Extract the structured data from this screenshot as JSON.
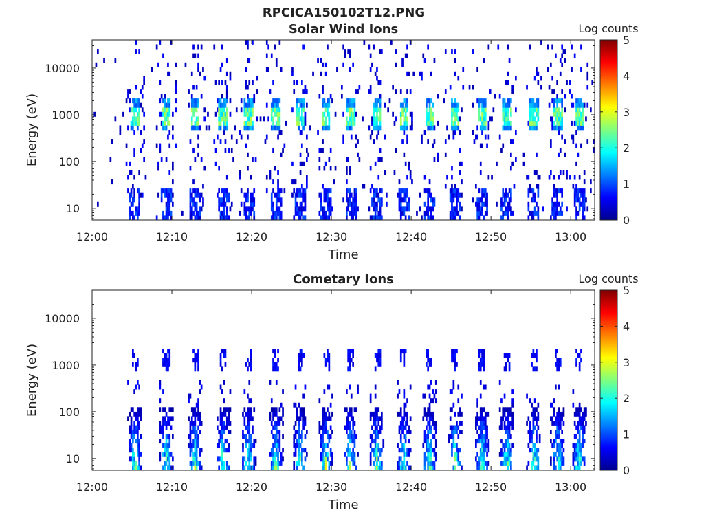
{
  "figure_title": "RPCICA150102T12.PNG",
  "chart_data": [
    {
      "type": "heatmap",
      "title": "Solar Wind Ions",
      "xlabel": "Time",
      "ylabel": "Energy (eV)",
      "x_start": "12:00",
      "xlim_minutes": [
        0,
        63
      ],
      "xticks": [
        "12:00",
        "12:10",
        "12:20",
        "12:30",
        "12:40",
        "12:50",
        "13:00"
      ],
      "yscale": "log",
      "ylim": [
        5.6,
        40000
      ],
      "yticks": [
        10,
        100,
        1000,
        10000
      ],
      "yticklabels": [
        "10",
        "100",
        "1000",
        "10000"
      ],
      "colorbar": {
        "label": "Log counts",
        "min": 0,
        "max": 5,
        "ticks": [
          "0",
          "1",
          "2",
          "3",
          "4",
          "5"
        ],
        "colormap": "jet"
      },
      "sweep_times_min": [
        5.3,
        9.2,
        12.8,
        16.3,
        19.5,
        22.9,
        26.0,
        29.2,
        32.3,
        35.6,
        39.0,
        42.2,
        45.4,
        48.8,
        51.9,
        55.3,
        58.3,
        61.0
      ],
      "peak_energy_eV": [
        800,
        1000,
        2000
      ],
      "peak_log_counts": 2.8,
      "low_energy_band_eV": [
        6,
        28
      ],
      "low_energy_log_counts": 0.6
    },
    {
      "type": "heatmap",
      "title": "Cometary Ions",
      "xlabel": "Time",
      "ylabel": "Energy (eV)",
      "x_start": "12:00",
      "xlim_minutes": [
        0,
        63
      ],
      "xticks": [
        "12:00",
        "12:10",
        "12:20",
        "12:30",
        "12:40",
        "12:50",
        "13:00"
      ],
      "yscale": "log",
      "ylim": [
        5.6,
        40000
      ],
      "yticks": [
        10,
        100,
        1000,
        10000
      ],
      "yticklabels": [
        "10",
        "100",
        "1000",
        "10000"
      ],
      "colorbar": {
        "label": "Log counts",
        "min": 0,
        "max": 5,
        "ticks": [
          "0",
          "1",
          "2",
          "3",
          "4",
          "5"
        ],
        "colormap": "jet"
      },
      "sweep_times_min": [
        5.3,
        9.2,
        12.8,
        16.3,
        19.5,
        22.9,
        26.0,
        29.2,
        32.3,
        35.6,
        39.0,
        42.2,
        45.4,
        48.8,
        51.9,
        55.3,
        58.3,
        61.0
      ],
      "main_energy_band_eV": [
        6,
        120
      ],
      "peak_energy_eV": 10,
      "peak_log_counts": 2.7,
      "secondary_energy_eV": [
        1000,
        2000
      ],
      "secondary_log_counts": 0.6
    }
  ]
}
